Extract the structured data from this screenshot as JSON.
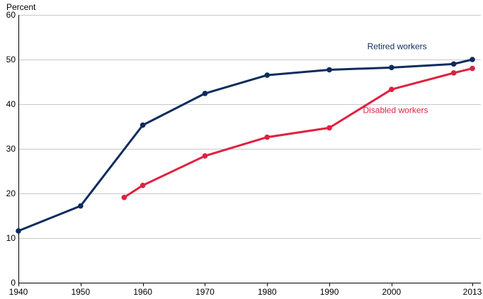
{
  "chart_data": {
    "type": "line",
    "title": "",
    "ylabel": "Percent",
    "xlabel": "",
    "xlim": [
      1940,
      2013
    ],
    "ylim": [
      0,
      60
    ],
    "x_ticks": [
      1940,
      1950,
      1960,
      1970,
      1980,
      1990,
      2000,
      2013
    ],
    "y_ticks": [
      0,
      10,
      20,
      30,
      40,
      50,
      60
    ],
    "grid": "horizontal",
    "series": [
      {
        "name": "Retired workers",
        "color": "#0d2c5e",
        "points": [
          {
            "x": 1940,
            "y": 11.6
          },
          {
            "x": 1950,
            "y": 17.2
          },
          {
            "x": 1960,
            "y": 35.3
          },
          {
            "x": 1970,
            "y": 42.4
          },
          {
            "x": 1980,
            "y": 46.5
          },
          {
            "x": 1990,
            "y": 47.7
          },
          {
            "x": 2000,
            "y": 48.2
          },
          {
            "x": 2010,
            "y": 49.0
          },
          {
            "x": 2013,
            "y": 50.0
          }
        ]
      },
      {
        "name": "Disabled workers",
        "color": "#e0203f",
        "points": [
          {
            "x": 1957,
            "y": 19.1
          },
          {
            "x": 1960,
            "y": 21.8
          },
          {
            "x": 1970,
            "y": 28.4
          },
          {
            "x": 1980,
            "y": 32.6
          },
          {
            "x": 1990,
            "y": 34.7
          },
          {
            "x": 2000,
            "y": 43.3
          },
          {
            "x": 2010,
            "y": 47.0
          },
          {
            "x": 2013,
            "y": 48.0
          }
        ]
      }
    ]
  }
}
